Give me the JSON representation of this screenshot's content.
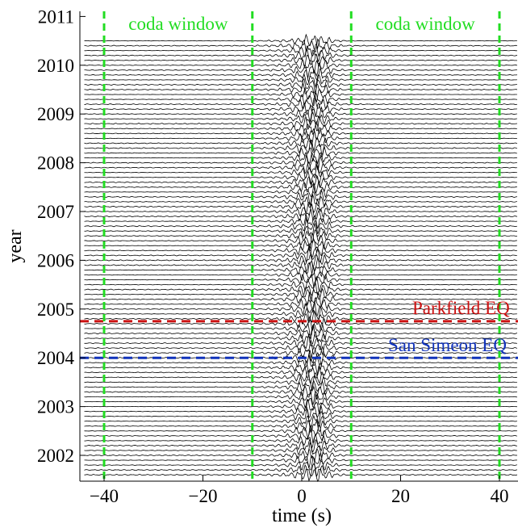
{
  "chart_data": {
    "type": "line",
    "xlabel": "time (s)",
    "ylabel": "year",
    "xlim": [
      -44,
      44
    ],
    "ylim": [
      2001.5,
      2011.1
    ],
    "x_ticks": [
      -40,
      -20,
      0,
      20,
      40
    ],
    "x_tick_labels": [
      "−40",
      "−20",
      "0",
      "20",
      "40"
    ],
    "y_ticks": [
      2002,
      2003,
      2004,
      2005,
      2006,
      2007,
      2008,
      2009,
      2010,
      2011
    ],
    "y_tick_labels": [
      "2002",
      "2003",
      "2004",
      "2005",
      "2006",
      "2007",
      "2008",
      "2009",
      "2010",
      "2011"
    ],
    "grid": false,
    "waveforms": {
      "color": "#000000",
      "first_year": 2001.6,
      "last_year": 2010.5,
      "count": 90,
      "time_range": [
        -44,
        44
      ]
    },
    "vertical_lines": [
      {
        "x": -40,
        "color": "#22dd22",
        "style": "dashed"
      },
      {
        "x": -10,
        "color": "#22dd22",
        "style": "dashed"
      },
      {
        "x": 10,
        "color": "#22dd22",
        "style": "dashed"
      },
      {
        "x": 40,
        "color": "#22dd22",
        "style": "dashed"
      }
    ],
    "window_labels": [
      {
        "text": "coda window",
        "x_center": -25,
        "color": "#22dd22"
      },
      {
        "text": "coda window",
        "x_center": 25,
        "color": "#22dd22"
      }
    ],
    "events": [
      {
        "label": "Parkfield EQ",
        "year": 2004.75,
        "color": "#cc1111"
      },
      {
        "label": "San Simeon EQ",
        "year": 2004.0,
        "color": "#1133bb"
      }
    ]
  }
}
